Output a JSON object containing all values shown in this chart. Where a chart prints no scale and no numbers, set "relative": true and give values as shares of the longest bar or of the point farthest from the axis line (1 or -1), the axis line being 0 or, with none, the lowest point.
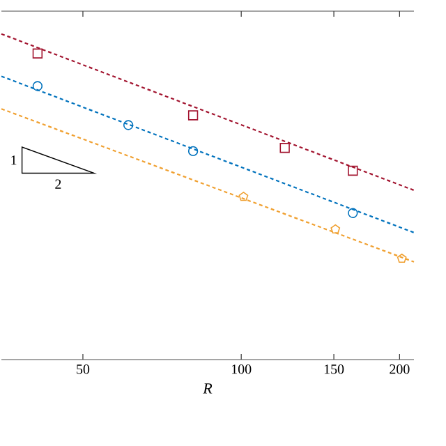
{
  "chart_data": {
    "type": "line",
    "relative": true,
    "log": "x",
    "xlabel": "R",
    "xlim": [
      35,
      213
    ],
    "xticks": [
      50,
      100,
      150,
      200
    ],
    "tick_labels": "x",
    "grid": false,
    "annotations": [
      "1",
      "2"
    ],
    "series": [
      {
        "color": "#a2142f",
        "x": [
          35,
          213
        ],
        "values": [
          1.0,
          0.52
        ],
        "line_style": "dashed",
        "marker": "none"
      },
      {
        "color": "#0072bd",
        "x": [
          35,
          213
        ],
        "values": [
          0.87,
          0.39
        ],
        "line_style": "dashed",
        "marker": "none"
      },
      {
        "color": "#f0a030",
        "x": [
          35,
          213
        ],
        "values": [
          0.77,
          0.3
        ],
        "line_style": "dashed",
        "marker": "none"
      },
      {
        "type": "scatter",
        "color": "#a2142f",
        "x": [
          41,
          81,
          121,
          163
        ],
        "values": [
          0.94,
          0.75,
          0.65,
          0.58
        ],
        "marker": "square"
      },
      {
        "type": "scatter",
        "color": "#0072bd",
        "x": [
          41,
          61,
          81,
          163
        ],
        "values": [
          0.84,
          0.72,
          0.64,
          0.45
        ],
        "marker": "circle"
      },
      {
        "type": "scatter",
        "color": "#f0a030",
        "x": [
          101,
          151,
          202
        ],
        "values": [
          0.5,
          0.4,
          0.31
        ]
      }
    ]
  }
}
